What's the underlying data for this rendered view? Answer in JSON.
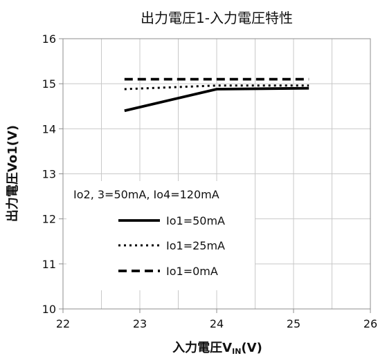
{
  "chart_data": {
    "type": "line",
    "title": "出力電圧1-入力電圧特性",
    "xlabel_main": "入力電圧V",
    "xlabel_sub": "IN",
    "xlabel_tail": "(V)",
    "ylabel": "出力電圧Vo1(V)",
    "xlim": [
      22,
      26
    ],
    "ylim": [
      10,
      16
    ],
    "xticks": [
      "22",
      "23",
      "24",
      "25",
      "26"
    ],
    "yticks": [
      "10",
      "11",
      "12",
      "13",
      "14",
      "15",
      "16"
    ],
    "grid": true,
    "legend_header": "Io2, 3=50mA, Io4=120mA",
    "legend_position": "lower-left",
    "series": [
      {
        "name": "Io1=50mA",
        "style": "solid",
        "color": "#000000",
        "x": [
          22.8,
          24.0,
          25.2
        ],
        "y": [
          14.4,
          14.88,
          14.9
        ]
      },
      {
        "name": "Io1=25mA",
        "style": "dotted",
        "color": "#000000",
        "x": [
          22.8,
          24.0,
          25.2
        ],
        "y": [
          14.88,
          14.96,
          14.96
        ]
      },
      {
        "name": "Io1=0mA",
        "style": "dashed",
        "color": "#000000",
        "x": [
          22.8,
          24.0,
          25.2
        ],
        "y": [
          15.1,
          15.1,
          15.1
        ]
      }
    ]
  }
}
